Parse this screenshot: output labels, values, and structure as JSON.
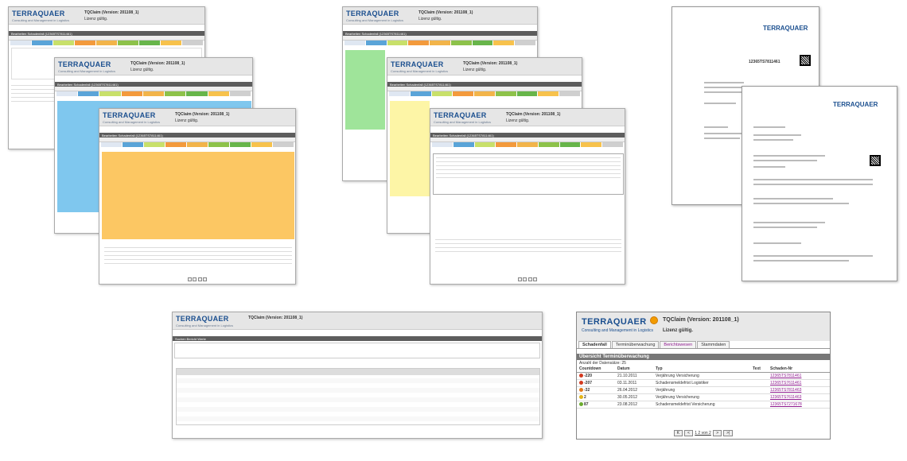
{
  "brand": {
    "name": "TERRAQUAER",
    "tagline": "Consulting and Management in Logistics"
  },
  "app": {
    "title": "TQClaim (Version: 201108_1)",
    "title_small": "TQClaim (Version: 201108_1)",
    "licence": "Lizenz gültig."
  },
  "nav_tabs": [
    "Schadenfall",
    "Terminüberwachung",
    "Berichtswesen",
    "Stammdaten"
  ],
  "case_bar": "Bearbeiten Schadenfall (12365TS7811461)",
  "case_tabs": [
    "Allgemein",
    "Adressen",
    "Empfänger",
    "Schadenangaben",
    "Gesamtfolgen",
    "Versicherung",
    "Regulierung",
    "Vermerk/Notizen",
    "Anlagen"
  ],
  "doc": {
    "reference": "12365TS7811461"
  },
  "report": {
    "header": "Suchen Bericht Werte"
  },
  "overview": {
    "section_title": "Übersicht Terminüberwachung",
    "count_label": "Anzahl der Datensätze: 25",
    "columns": [
      "Countdown",
      "Datum",
      "Typ",
      "Text",
      "Schaden-Nr"
    ],
    "rows": [
      {
        "countdown": "-220",
        "date": "21.10.2011",
        "type": "Verjährung Versicherung",
        "text": "",
        "claim": "12365TS7811461",
        "color": "#d33a1f"
      },
      {
        "countdown": "-207",
        "date": "03.11.2011",
        "type": "Schadensmeldefrist Logistiker",
        "text": "",
        "claim": "12365TS7611461",
        "color": "#d33a1f"
      },
      {
        "countdown": "-32",
        "date": "26.04.2012",
        "type": "Verjährung",
        "text": "",
        "claim": "12365TS7811463",
        "color": "#e3781b"
      },
      {
        "countdown": "2",
        "date": "30.05.2012",
        "type": "Verjährung Versicherung",
        "text": "",
        "claim": "12365TS7611463",
        "color": "#e2b51a"
      },
      {
        "countdown": "87",
        "date": "23.08.2012",
        "type": "Schadensmeldefrist Versicherung",
        "text": "",
        "claim": "12365TS7271678",
        "color": "#6bab2e"
      }
    ],
    "pager": "1 2 von 2"
  },
  "colors": {
    "brand_blue": "#1b4f8f",
    "link_purple": "#8e1a8e",
    "header_grey": "#5d5d5d",
    "accent_orange": "#f29b00"
  }
}
